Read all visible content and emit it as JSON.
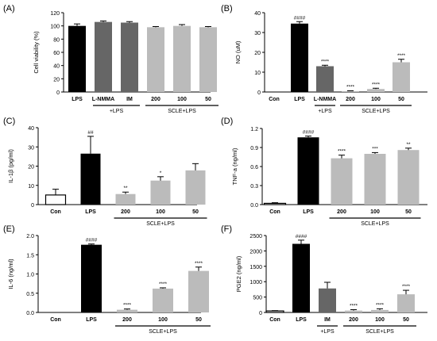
{
  "chart_data": [
    {
      "panel": "(A)",
      "type": "bar",
      "ylabel": "Cell viability (%)",
      "ylim": [
        0,
        120
      ],
      "yticks": [
        "0",
        "20",
        "40",
        "60",
        "80",
        "100",
        "120"
      ],
      "categories": [
        "LPS",
        "L-NMMA",
        "IM",
        "200",
        "100",
        "50"
      ],
      "values": [
        100,
        106,
        105,
        98,
        100,
        98
      ],
      "errors": [
        3,
        1.5,
        1.5,
        1,
        2,
        1
      ],
      "colors": [
        "#000000",
        "#666666",
        "#666666",
        "#bbbbbb",
        "#bbbbbb",
        "#bbbbbb"
      ],
      "sig": [
        "",
        "",
        "",
        "",
        "",
        ""
      ],
      "groups": [
        {
          "label": "+LPS",
          "from": 1,
          "to": 2
        },
        {
          "label": "SCLE+LPS",
          "from": 3,
          "to": 5
        }
      ]
    },
    {
      "panel": "(B)",
      "type": "bar",
      "ylabel": "NO (uM)",
      "ylim": [
        0,
        40
      ],
      "yticks": [
        "0",
        "10",
        "20",
        "30",
        "40"
      ],
      "categories": [
        "Con",
        "LPS",
        "L-NMMA",
        "200",
        "100",
        "50"
      ],
      "values": [
        0,
        34.5,
        13,
        0.4,
        1.5,
        15
      ],
      "errors": [
        0,
        1,
        0.5,
        0.2,
        0.4,
        1.5
      ],
      "colors": [
        "#ffffff",
        "#000000",
        "#666666",
        "#bbbbbb",
        "#bbbbbb",
        "#bbbbbb"
      ],
      "sig": [
        "",
        "####",
        "****",
        "****",
        "****",
        "****"
      ],
      "groups": [
        {
          "label": "+LPS",
          "from": 2,
          "to": 2
        },
        {
          "label": "SCLE+LPS",
          "from": 3,
          "to": 5
        }
      ]
    },
    {
      "panel": "(C)",
      "type": "bar",
      "ylabel": "IL-1β (pg/ml)",
      "ylim": [
        0,
        40
      ],
      "yticks": [
        "0",
        "10",
        "20",
        "30",
        "40"
      ],
      "categories": [
        "Con",
        "LPS",
        "200",
        "100",
        "50"
      ],
      "values": [
        5,
        26.5,
        5.5,
        12.5,
        17.8
      ],
      "errors": [
        3,
        9,
        1,
        2,
        3.5
      ],
      "colors": [
        "#ffffff",
        "#000000",
        "#bbbbbb",
        "#bbbbbb",
        "#bbbbbb"
      ],
      "sig": [
        "",
        "##",
        "**",
        "*",
        ""
      ],
      "groups": [
        {
          "label": "SCLE+LPS",
          "from": 2,
          "to": 4
        }
      ]
    },
    {
      "panel": "(D)",
      "type": "bar",
      "ylabel": "TNF-a (ng/ml)",
      "ylim": [
        0,
        1.2
      ],
      "yticks": [
        "0.0",
        "0.3",
        "0.6",
        "0.9",
        "1.2"
      ],
      "categories": [
        "Con",
        "LPS",
        "200",
        "100",
        "50"
      ],
      "values": [
        0.02,
        1.06,
        0.73,
        0.8,
        0.86
      ],
      "errors": [
        0.01,
        0.02,
        0.05,
        0.02,
        0.03
      ],
      "colors": [
        "#ffffff",
        "#000000",
        "#bbbbbb",
        "#bbbbbb",
        "#bbbbbb"
      ],
      "sig": [
        "",
        "####",
        "****",
        "***",
        "**"
      ],
      "groups": [
        {
          "label": "SCLE+LPS",
          "from": 2,
          "to": 4
        }
      ]
    },
    {
      "panel": "(E)",
      "type": "bar",
      "ylabel": "IL-6 (ng/ml)",
      "ylim": [
        0,
        2.0
      ],
      "yticks": [
        "0.0",
        "0.5",
        "1.0",
        "1.5",
        "2.0"
      ],
      "categories": [
        "Con",
        "LPS",
        "200",
        "100",
        "50"
      ],
      "values": [
        0,
        1.76,
        0.07,
        0.62,
        1.08
      ],
      "errors": [
        0,
        0.02,
        0.02,
        0.02,
        0.1
      ],
      "colors": [
        "#ffffff",
        "#000000",
        "#bbbbbb",
        "#bbbbbb",
        "#bbbbbb"
      ],
      "sig": [
        "",
        "####",
        "****",
        "****",
        "****"
      ],
      "groups": [
        {
          "label": "SCLE+LPS",
          "from": 2,
          "to": 4
        }
      ]
    },
    {
      "panel": "(F)",
      "type": "bar",
      "ylabel": "PGE2 (ng/ml)",
      "ylim": [
        0,
        2500
      ],
      "yticks": [
        "0",
        "500",
        "1000",
        "1500",
        "2000",
        "2500"
      ],
      "categories": [
        "Con",
        "LPS",
        "IM",
        "200",
        "100",
        "50"
      ],
      "values": [
        50,
        2230,
        780,
        60,
        80,
        590
      ],
      "errors": [
        10,
        120,
        200,
        30,
        40,
        130
      ],
      "colors": [
        "#ffffff",
        "#000000",
        "#666666",
        "#bbbbbb",
        "#bbbbbb",
        "#bbbbbb"
      ],
      "sig": [
        "",
        "####",
        "",
        "****",
        "****",
        "****"
      ],
      "groups": [
        {
          "label": "+LPS",
          "from": 2,
          "to": 2
        },
        {
          "label": "SCLE+LPS",
          "from": 3,
          "to": 5
        }
      ]
    }
  ]
}
